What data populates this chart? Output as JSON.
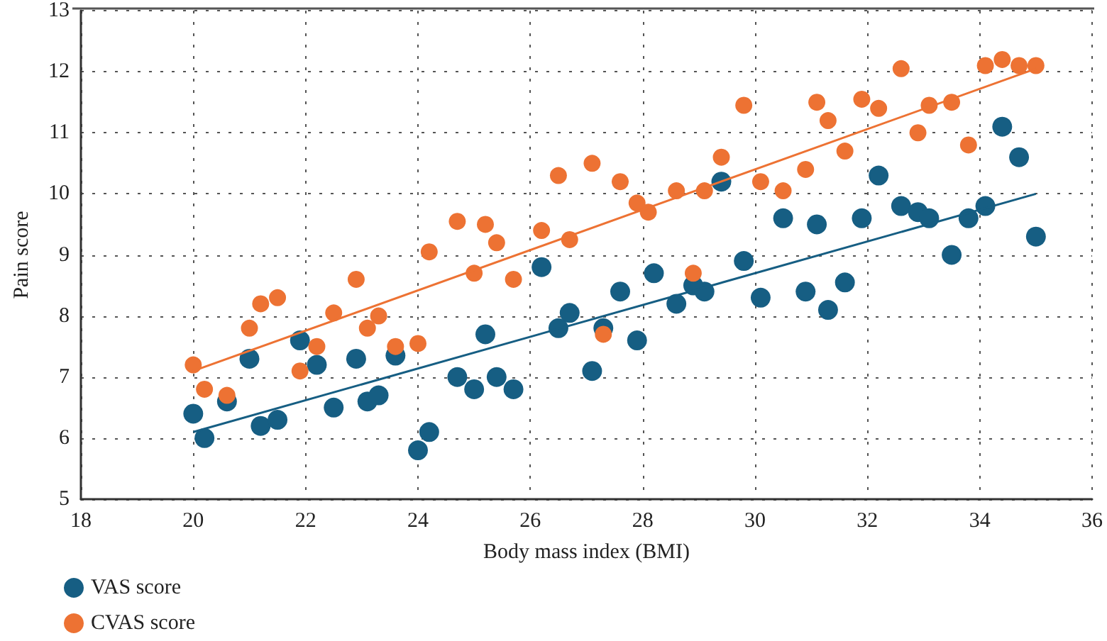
{
  "chart_data": {
    "type": "scatter",
    "xlabel": "Body mass index (BMI)",
    "ylabel": "Pain score",
    "xlim": [
      18,
      36
    ],
    "xticks": [
      18,
      20,
      22,
      24,
      26,
      28,
      30,
      32,
      34,
      36
    ],
    "ylim": [
      5,
      13
    ],
    "yticks": [
      5,
      6,
      7,
      8,
      9,
      10,
      11,
      12,
      13
    ],
    "grid": true,
    "legend": "bottom left",
    "marker": "circle",
    "series": [
      {
        "name": "VAS score",
        "color": "#165e83",
        "x": [
          20,
          20.2,
          20.6,
          21,
          21.2,
          21.5,
          21.9,
          22.2,
          22.5,
          22.9,
          23.1,
          23.3,
          23.6,
          24,
          24.2,
          24.7,
          25,
          25.2,
          25.4,
          25.7,
          26.2,
          26.5,
          26.7,
          27.1,
          27.3,
          27.6,
          27.9,
          28.2,
          28.6,
          28.9,
          29.1,
          29.4,
          29.8,
          30.1,
          30.5,
          30.9,
          31.1,
          31.3,
          31.6,
          31.9,
          32.2,
          32.6,
          32.9,
          33.1,
          33.5,
          33.8,
          34.1,
          34.4,
          34.7,
          35
        ],
        "values": [
          6.4,
          6.0,
          6.6,
          7.3,
          6.2,
          6.3,
          7.6,
          7.2,
          6.5,
          7.3,
          6.6,
          6.7,
          7.35,
          5.8,
          6.1,
          7.0,
          6.8,
          7.7,
          7.0,
          6.8,
          8.8,
          7.8,
          8.05,
          7.1,
          7.8,
          8.4,
          7.6,
          8.7,
          8.2,
          8.5,
          8.4,
          10.2,
          8.9,
          8.3,
          9.6,
          8.4,
          9.5,
          8.1,
          8.55,
          9.6,
          10.3,
          9.8,
          9.7,
          9.6,
          9.0,
          9.6,
          9.8,
          11.1,
          10.6,
          9.3
        ]
      },
      {
        "name": "CVAS score",
        "color": "#ed7233",
        "x": [
          20,
          20.2,
          20.6,
          21,
          21.2,
          21.5,
          21.9,
          22.2,
          22.5,
          22.9,
          23.1,
          23.3,
          23.6,
          24,
          24.2,
          24.7,
          25,
          25.2,
          25.4,
          25.7,
          26.2,
          26.5,
          26.7,
          27.1,
          27.3,
          27.6,
          27.9,
          28.1,
          28.6,
          28.9,
          29.1,
          29.4,
          29.8,
          30.1,
          30.5,
          30.9,
          31.1,
          31.3,
          31.6,
          31.9,
          32.2,
          32.6,
          32.9,
          33.1,
          33.5,
          33.8,
          34.1,
          34.4,
          34.7,
          35
        ],
        "values": [
          7.2,
          6.8,
          6.7,
          7.8,
          8.2,
          8.3,
          7.1,
          7.5,
          8.05,
          8.6,
          7.8,
          8.0,
          7.5,
          7.55,
          9.05,
          9.55,
          8.7,
          9.5,
          9.2,
          8.6,
          9.4,
          10.3,
          9.25,
          10.5,
          7.7,
          10.2,
          9.85,
          9.7,
          10.05,
          8.7,
          10.05,
          10.6,
          11.45,
          10.2,
          10.05,
          10.4,
          11.5,
          11.2,
          10.7,
          11.55,
          11.4,
          12.05,
          11.0,
          11.45,
          11.5,
          10.8,
          12.1,
          12.2,
          12.1,
          12.1
        ]
      },
      {
        "type": "line",
        "color": "#165e83",
        "x": [
          20,
          35
        ],
        "values": [
          6.1,
          10.0
        ],
        "marker": "none"
      },
      {
        "type": "line",
        "color": "#ed7233",
        "x": [
          20,
          35
        ],
        "values": [
          7.1,
          12.05
        ],
        "marker": "none"
      }
    ]
  }
}
